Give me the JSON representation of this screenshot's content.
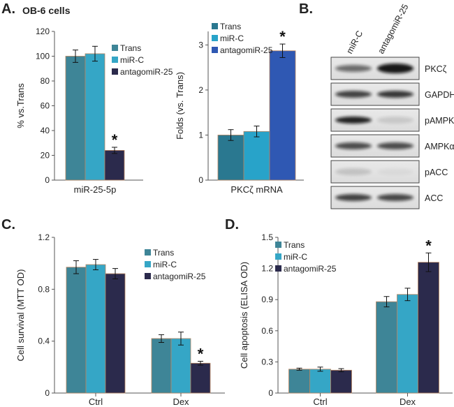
{
  "figure": {
    "panel_letters": [
      "A.",
      "B.",
      "C.",
      "D."
    ],
    "cell_line": "OB-6 cells"
  },
  "colors": {
    "trans": "#3e8597",
    "mir_c": "#35a6c6",
    "antagomir_c": "#2b2a4c",
    "antagomir_b": "#2f58b3",
    "bar_edge": "#b98560"
  },
  "chart_data": [
    {
      "id": "A1",
      "type": "bar",
      "title": "",
      "categories": [
        "miR-25-5p"
      ],
      "xlabel": "miR-25-5p",
      "ylabel": "% vs.Trans",
      "ylim": [
        0,
        120
      ],
      "yticks": [
        0,
        20,
        40,
        60,
        80,
        100,
        120
      ],
      "legend": "top-right",
      "series": [
        {
          "name": "Trans",
          "values": [
            100
          ],
          "errors": [
            5
          ],
          "color": "#3e8597"
        },
        {
          "name": "miR-C",
          "values": [
            102
          ],
          "errors": [
            6
          ],
          "color": "#35a6c6"
        },
        {
          "name": "antagomiR-25",
          "values": [
            24
          ],
          "errors": [
            2.5
          ],
          "color": "#2b2a4c",
          "star": "*"
        }
      ]
    },
    {
      "id": "A2",
      "type": "bar",
      "title": "",
      "categories": [
        "PKCζ mRNA"
      ],
      "xlabel": "PKCζ mRNA",
      "ylabel": "Folds (vs. Trans)",
      "ylim": [
        0,
        3.3
      ],
      "yticks": [
        0,
        1,
        2,
        3
      ],
      "legend": "top-left",
      "series": [
        {
          "name": "Trans",
          "values": [
            1.0
          ],
          "errors": [
            0.12
          ],
          "color": "#2a7890"
        },
        {
          "name": "miR-C",
          "values": [
            1.08
          ],
          "errors": [
            0.12
          ],
          "color": "#28a3c9"
        },
        {
          "name": "antagomiR-25",
          "values": [
            2.87
          ],
          "errors": [
            0.15
          ],
          "color": "#2f58b3",
          "star": "*"
        }
      ]
    },
    {
      "id": "C",
      "type": "bar",
      "title": "",
      "categories": [
        "Ctrl",
        "Dex"
      ],
      "xlabel": "",
      "ylabel": "Cell survival (MTT OD)",
      "ylim": [
        0,
        1.2
      ],
      "yticks": [
        "0",
        "0.4",
        "0.8",
        "1.2"
      ],
      "legend": "top-right",
      "series": [
        {
          "name": "Trans",
          "values": [
            0.97,
            0.42
          ],
          "errors": [
            0.05,
            0.03
          ],
          "color": "#3e8597"
        },
        {
          "name": "miR-C",
          "values": [
            0.99,
            0.42
          ],
          "errors": [
            0.04,
            0.05
          ],
          "color": "#35a6c6"
        },
        {
          "name": "antagomiR-25",
          "values": [
            0.92,
            0.23
          ],
          "errors": [
            0.04,
            0.015
          ],
          "color": "#2b2a4c",
          "stars": [
            "",
            "*"
          ]
        }
      ]
    },
    {
      "id": "D",
      "type": "bar",
      "title": "",
      "categories": [
        "Ctrl",
        "Dex"
      ],
      "xlabel": "",
      "ylabel": "Cell apoptosis (ELISA OD)",
      "ylim": [
        0,
        1.5
      ],
      "yticks": [
        "0",
        "0.3",
        "0.6",
        "0.9",
        "1.2",
        "1.5"
      ],
      "legend": "top-left",
      "series": [
        {
          "name": "Trans",
          "values": [
            0.23,
            0.88
          ],
          "errors": [
            0.01,
            0.05
          ],
          "color": "#3e8597"
        },
        {
          "name": "miR-C",
          "values": [
            0.23,
            0.95
          ],
          "errors": [
            0.02,
            0.06
          ],
          "color": "#35a6c6"
        },
        {
          "name": "antagomiR-25",
          "values": [
            0.22,
            1.26
          ],
          "errors": [
            0.015,
            0.09
          ],
          "color": "#2b2a4c",
          "stars": [
            "",
            "*"
          ]
        }
      ]
    }
  ],
  "blot": {
    "lanes": [
      "miR-C",
      "antagomiR-25"
    ],
    "rows": [
      {
        "label": "PKCζ"
      },
      {
        "label": "GAPDH"
      },
      {
        "label": "pAMPKα"
      },
      {
        "label": "AMPKα"
      },
      {
        "label": "pACC"
      },
      {
        "label": "ACC"
      }
    ]
  }
}
